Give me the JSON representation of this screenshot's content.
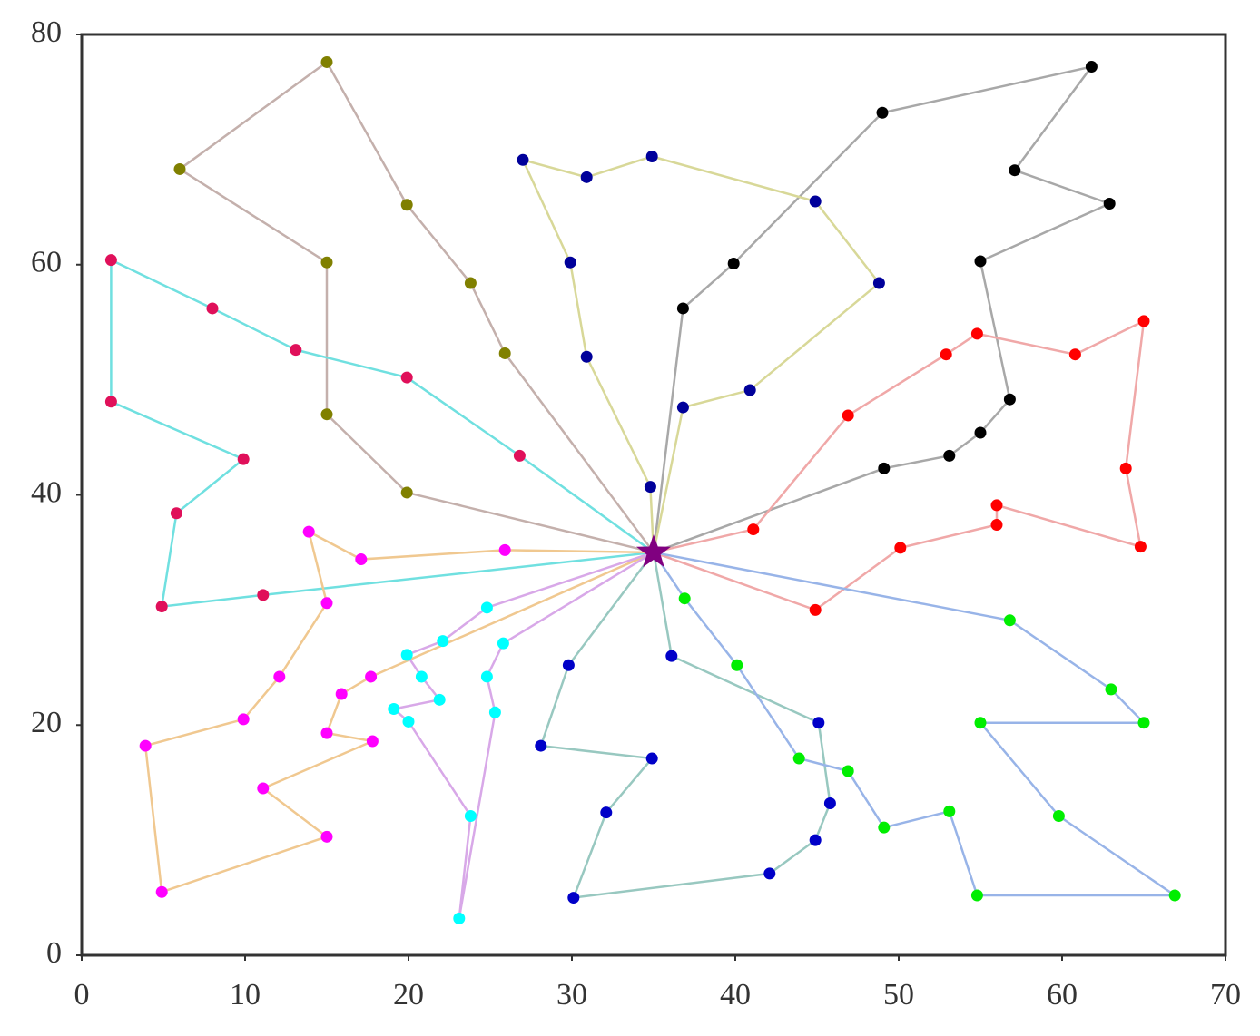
{
  "chart_data": {
    "type": "route",
    "xlim": [
      0,
      70
    ],
    "ylim": [
      0,
      80
    ],
    "xticks": [
      0,
      10,
      20,
      30,
      40,
      50,
      60,
      70
    ],
    "yticks": [
      0,
      20,
      40,
      60,
      80
    ],
    "depot": {
      "x": 35,
      "y": 35,
      "color": "#800080"
    },
    "series": [
      {
        "color": "#808000",
        "line_color": "#c4b0ac",
        "x": [
          19.9,
          15,
          15,
          6,
          15,
          19.9,
          23.8,
          25.9
        ],
        "y": [
          40.2,
          47,
          60.2,
          68.3,
          77.6,
          65.2,
          58.4,
          52.3
        ]
      },
      {
        "color": "#000000",
        "line_color": "#a8a8a8",
        "x": [
          49.1,
          53.1,
          55,
          56.8,
          55,
          62.9,
          57.1,
          61.8,
          49,
          39.9,
          36.8
        ],
        "y": [
          42.3,
          43.4,
          45.4,
          48.3,
          60.3,
          65.3,
          68.2,
          77.2,
          73.2,
          60.1,
          56.2
        ]
      },
      {
        "color": "#00009a",
        "line_color": "#d8d898",
        "x": [
          34.8,
          30.9,
          29.9,
          27,
          30.9,
          34.9,
          44.9,
          48.8,
          40.9,
          36.8
        ],
        "y": [
          40.7,
          52,
          60.2,
          69.1,
          67.6,
          69.4,
          65.5,
          58.4,
          49.1,
          47.6
        ]
      },
      {
        "color": "#ff0000",
        "line_color": "#f0a8a8",
        "x": [
          41.1,
          46.9,
          52.9,
          54.8,
          60.8,
          65,
          63.9,
          64.8,
          56,
          56,
          50.1,
          44.9
        ],
        "y": [
          37,
          46.9,
          52.2,
          54,
          52.2,
          55.1,
          42.3,
          35.5,
          39.1,
          37.4,
          35.4,
          30
        ]
      },
      {
        "color": "#e0105a",
        "line_color": "#70e0e0",
        "x": [
          26.8,
          19.9,
          13.1,
          8,
          1.8,
          1.8,
          9.9,
          5.8,
          4.9,
          11.1
        ],
        "y": [
          43.4,
          50.2,
          52.6,
          56.2,
          60.4,
          48.1,
          43.1,
          38.4,
          30.3,
          31.3
        ]
      },
      {
        "color": "#ff00ff",
        "line_color": "#f0c890",
        "x": [
          25.9,
          17.1,
          13.9,
          15,
          12.1,
          9.9,
          3.9,
          4.9,
          15,
          11.1,
          17.8,
          15,
          15.9,
          17.7
        ],
        "y": [
          35.2,
          34.4,
          36.8,
          30.6,
          24.2,
          20.5,
          18.2,
          5.5,
          10.3,
          14.5,
          18.6,
          19.3,
          22.7,
          24.2
        ]
      },
      {
        "color": "#00ffff",
        "line_color": "#d8a8e8",
        "x": [
          24.8,
          22.1,
          19.9,
          20.8,
          21.9,
          19.1,
          20,
          23.8,
          23.1,
          25.3,
          24.8,
          25.8
        ],
        "y": [
          30.2,
          27.3,
          26.1,
          24.2,
          22.2,
          21.4,
          20.3,
          12.1,
          3.2,
          21.1,
          24.2,
          27.1
        ]
      },
      {
        "color": "#0000c8",
        "line_color": "#98c8c0",
        "x": [
          29.8,
          28.1,
          34.9,
          32.1,
          30.1,
          42.1,
          44.9,
          45.8,
          45.1,
          36.1
        ],
        "y": [
          25.2,
          18.2,
          17.1,
          12.4,
          5,
          7.1,
          10,
          13.2,
          20.2,
          26
        ]
      },
      {
        "color": "#00ee00",
        "line_color": "#98b4e8",
        "x": [
          36.9,
          40.1,
          43.9,
          46.9,
          49.1,
          53.1,
          54.8,
          66.9,
          59.8,
          55,
          65,
          63,
          56.8
        ],
        "y": [
          31,
          25.2,
          17.1,
          16,
          11.1,
          12.5,
          5.2,
          5.2,
          12.1,
          20.2,
          20.2,
          23.1,
          29.1
        ]
      }
    ]
  }
}
